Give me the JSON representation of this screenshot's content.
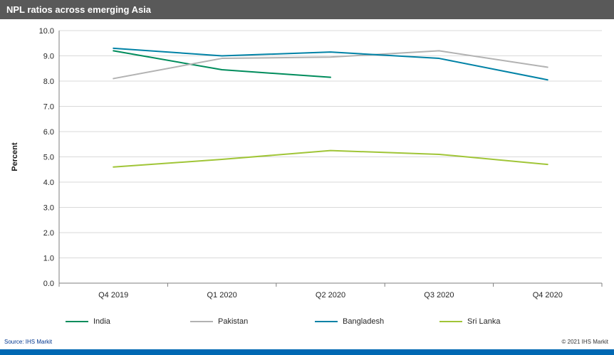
{
  "header": {
    "title": "NPL ratios across emerging Asia",
    "bg_color": "#595959"
  },
  "chart_data": {
    "type": "line",
    "title": "NPL ratios across emerging Asia",
    "categories": [
      "Q4 2019",
      "Q1 2020",
      "Q2 2020",
      "Q3 2020",
      "Q4 2020"
    ],
    "series": [
      {
        "name": "India",
        "color": "#008C5C",
        "values": [
          9.2,
          8.45,
          8.15,
          null,
          null
        ]
      },
      {
        "name": "Pakistan",
        "color": "#B2B2B2",
        "values": [
          8.1,
          8.9,
          8.95,
          9.2,
          8.55
        ]
      },
      {
        "name": "Bangladesh",
        "color": "#0082A6",
        "values": [
          9.3,
          9.0,
          9.15,
          8.9,
          8.05
        ]
      },
      {
        "name": "Sri Lanka",
        "color": "#A0C537",
        "values": [
          4.6,
          4.9,
          5.25,
          5.1,
          4.7
        ]
      }
    ],
    "xlabel": "",
    "ylabel": "Percent",
    "ylim": [
      0,
      10
    ],
    "ytick_step": 1,
    "ytick_labels": [
      "0.0",
      "1.0",
      "2.0",
      "3.0",
      "4.0",
      "5.0",
      "6.0",
      "7.0",
      "8.0",
      "9.0",
      "10.0"
    ],
    "grid": true,
    "legend_position": "bottom",
    "gridline_color": "#D9D9D9",
    "axis_color": "#7F7F7F"
  },
  "footer": {
    "source": "Source: IHS Markit",
    "copyright": "© 2021  IHS Markit",
    "bar_color": "#0068B3"
  }
}
